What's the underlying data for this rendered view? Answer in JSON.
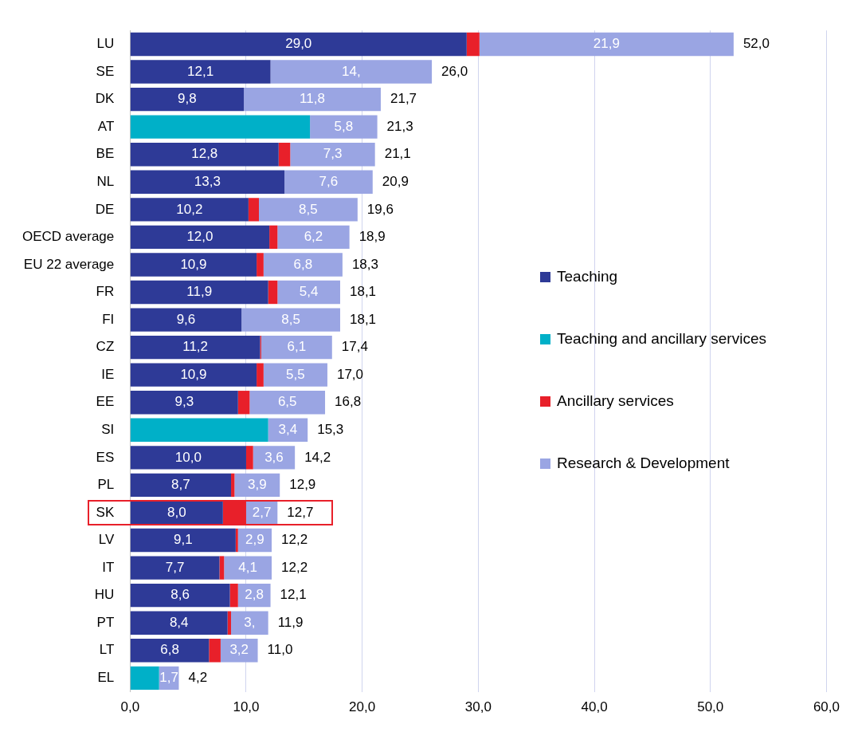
{
  "chart_data": {
    "type": "bar",
    "orientation": "horizontal",
    "stacked": true,
    "categories": [
      "LU",
      "SE",
      "DK",
      "AT",
      "BE",
      "NL",
      "DE",
      "OECD average",
      "EU 22 average",
      "FR",
      "FI",
      "CZ",
      "IE",
      "EE",
      "SI",
      "ES",
      "PL",
      "SK",
      "LV",
      "IT",
      "HU",
      "PT",
      "LT",
      "EL"
    ],
    "series": [
      {
        "name": "Teaching",
        "color": "#2e3a97",
        "values": [
          29.0,
          12.1,
          9.8,
          null,
          12.8,
          13.3,
          10.2,
          12.0,
          10.9,
          11.9,
          9.6,
          11.2,
          10.9,
          9.3,
          null,
          10.0,
          8.7,
          8.0,
          9.1,
          7.7,
          8.6,
          8.4,
          6.8,
          null
        ],
        "value_labels": [
          "29,0",
          "12,1",
          "9,8",
          null,
          "12,8",
          "13,3",
          "10,2",
          "12,0",
          "10,9",
          "11,9",
          "9,6",
          "11,2",
          "10,9",
          "9,3",
          null,
          "10,0",
          "8,7",
          "8,0",
          "9,1",
          "7,7",
          "8,6",
          "8,4",
          "6,8",
          null
        ]
      },
      {
        "name": "Teaching and ancillary services",
        "color": "#00b0c8",
        "values": [
          null,
          null,
          null,
          15.5,
          null,
          null,
          null,
          null,
          null,
          null,
          null,
          null,
          null,
          null,
          11.9,
          null,
          null,
          null,
          null,
          null,
          null,
          null,
          null,
          2.5
        ]
      },
      {
        "name": "Ancillary services",
        "color": "#e8202a",
        "values": [
          1.1,
          null,
          null,
          null,
          1.0,
          null,
          0.9,
          0.7,
          0.6,
          0.8,
          null,
          0.1,
          0.6,
          1.0,
          null,
          0.6,
          0.3,
          2.0,
          0.2,
          0.4,
          0.7,
          0.3,
          1.0,
          null
        ]
      },
      {
        "name": "Research & Development",
        "color": "#9aa5e3",
        "values": [
          21.9,
          13.9,
          11.8,
          5.8,
          7.3,
          7.6,
          8.5,
          6.2,
          6.8,
          5.4,
          8.5,
          6.1,
          5.5,
          6.5,
          3.4,
          3.6,
          3.9,
          2.7,
          2.9,
          4.1,
          2.8,
          3.2,
          3.2,
          1.7
        ],
        "value_labels": [
          "21,9",
          "14,",
          "11,8",
          "5,8",
          "7,3",
          "7,6",
          "8,5",
          "6,2",
          "6,8",
          "5,4",
          "8,5",
          "6,1",
          "5,5",
          "6,5",
          "3,4",
          "3,6",
          "3,9",
          "2,7",
          "2,9",
          "4,1",
          "2,8",
          "3,",
          "3,2",
          "1,7"
        ]
      }
    ],
    "totals": [
      "52,0",
      "26,0",
      "21,7",
      "21,3",
      "21,1",
      "20,9",
      "19,6",
      "18,9",
      "18,3",
      "18,1",
      "18,1",
      "17,4",
      "17,0",
      "16,8",
      "15,3",
      "14,2",
      "12,9",
      "12,7",
      "12,2",
      "12,2",
      "12,1",
      "11,9",
      "11,0",
      "4,2"
    ],
    "xlim": [
      0,
      60
    ],
    "xticks": [
      {
        "value": 0,
        "label": "0,0"
      },
      {
        "value": 10,
        "label": "10,0"
      },
      {
        "value": 20,
        "label": "20,0"
      },
      {
        "value": 30,
        "label": "30,0"
      },
      {
        "value": 40,
        "label": "40,0"
      },
      {
        "value": 50,
        "label": "50,0"
      },
      {
        "value": 60,
        "label": "60,0"
      }
    ],
    "grid": "x",
    "legend": "right"
  }
}
